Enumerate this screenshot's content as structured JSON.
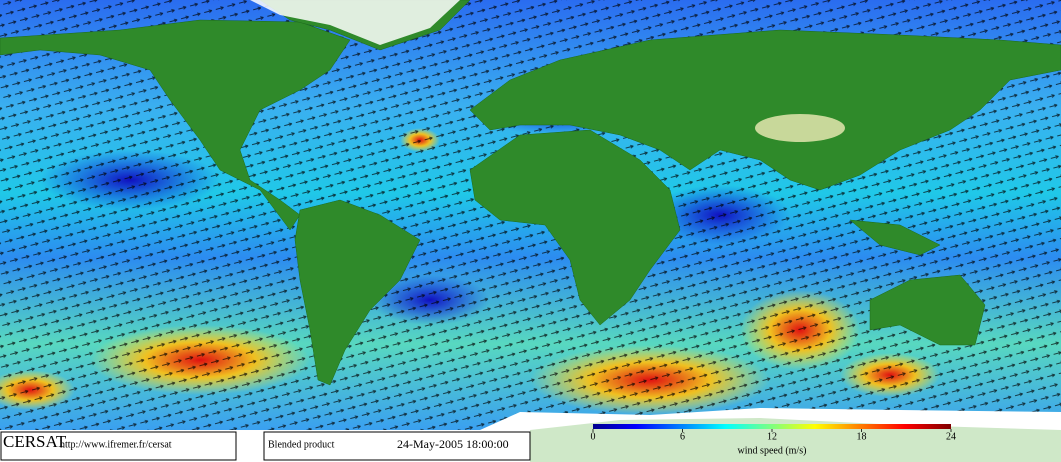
{
  "colorbar": {
    "label": "wind speed (m/s)",
    "lim": [
      0,
      24
    ],
    "ticks": [
      0,
      6,
      12,
      18,
      24
    ]
  },
  "footer": {
    "logo": "CERSAT",
    "url": "http://www.ifremer.fr/cersat",
    "product": "Blended product",
    "timestamp": "24-May-2005 18:00:00"
  }
}
